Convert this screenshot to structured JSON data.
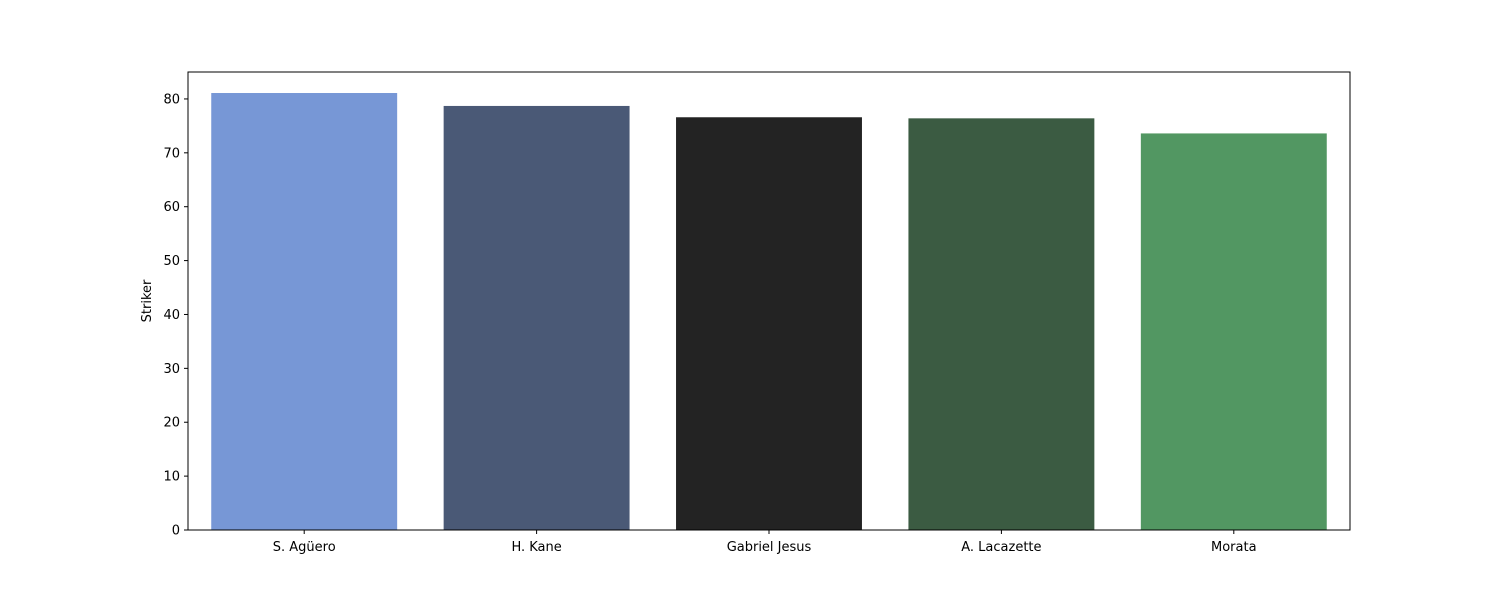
{
  "chart_data": {
    "type": "bar",
    "title": "",
    "xlabel": "",
    "ylabel": "Striker",
    "categories": [
      "S. Agüero",
      "H. Kane",
      "Gabriel Jesus",
      "A. Lacazette",
      "Morata"
    ],
    "values": [
      81.1,
      78.7,
      76.6,
      76.4,
      73.6
    ],
    "colors": [
      "#7797d6",
      "#4a5976",
      "#232323",
      "#3b5b42",
      "#529762"
    ],
    "ylim": [
      0,
      85
    ],
    "yticks": [
      0,
      10,
      20,
      30,
      40,
      50,
      60,
      70,
      80
    ],
    "grid": false,
    "legend": "none"
  }
}
